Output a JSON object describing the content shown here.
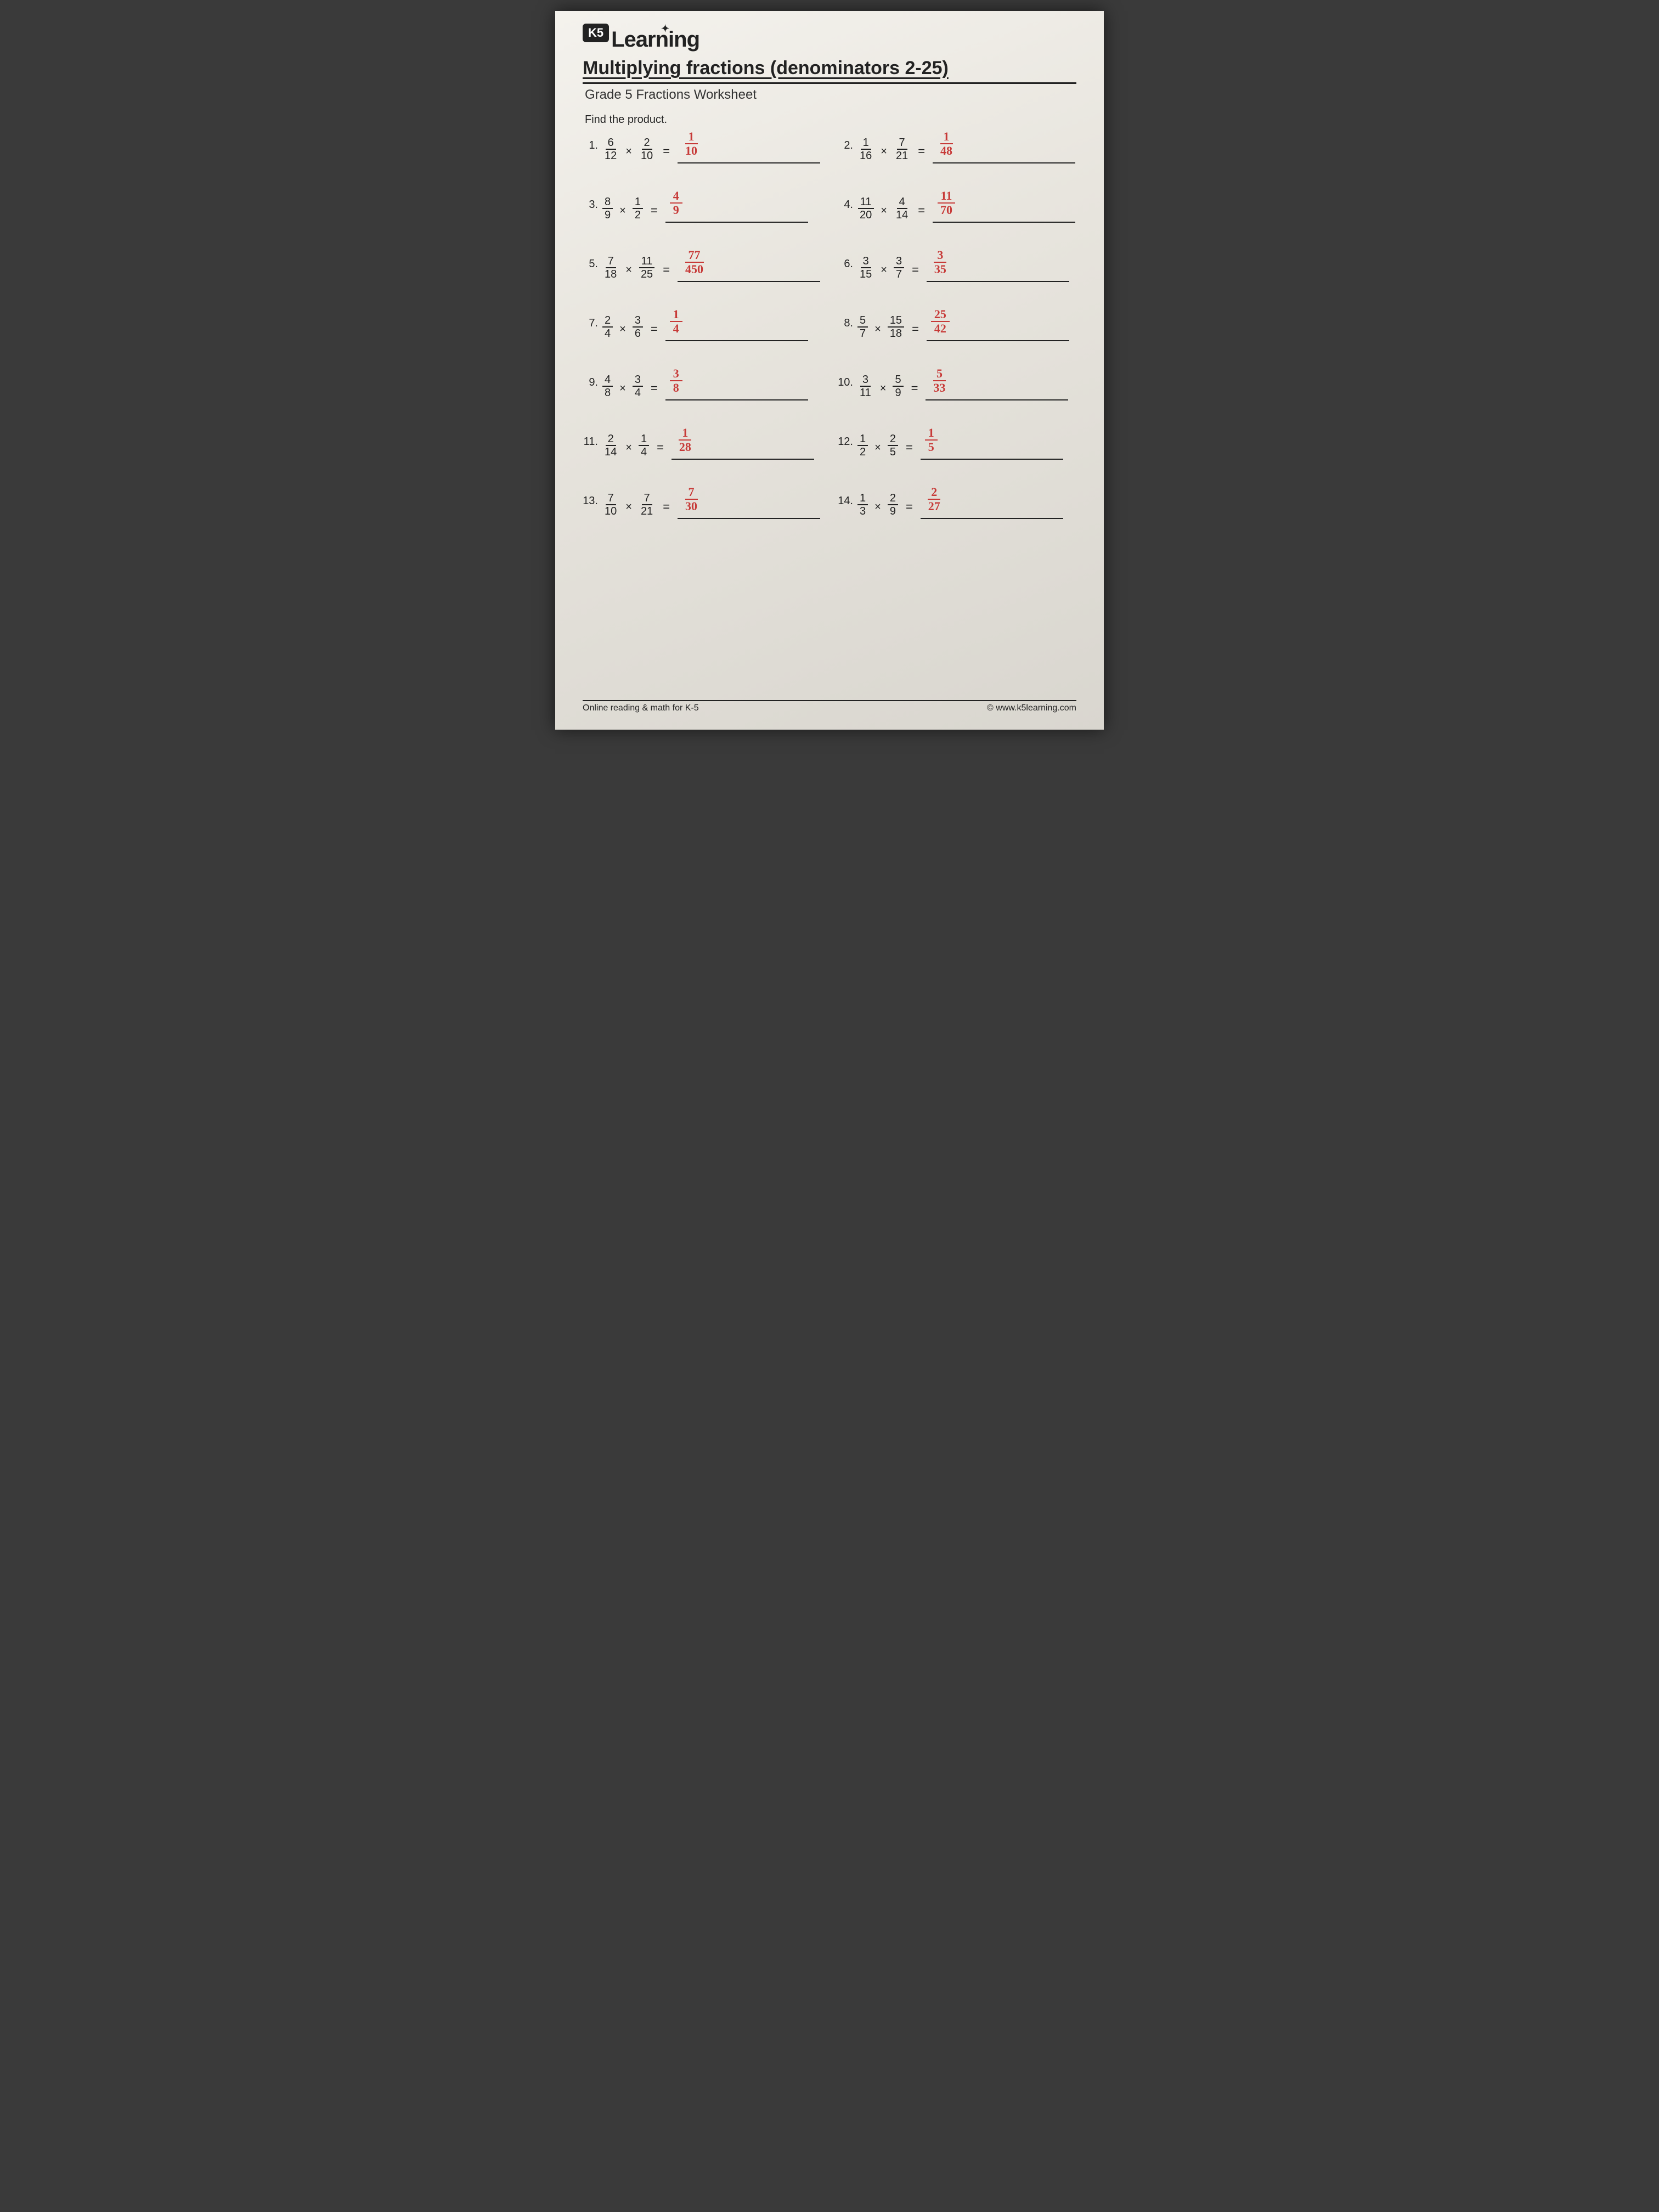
{
  "logo": {
    "badge": "K5",
    "word": "Learning"
  },
  "title": "Multiplying fractions (denominators 2-25)",
  "subtitle": "Grade 5 Fractions Worksheet",
  "instruction": "Find the product.",
  "problems": [
    {
      "n": "1.",
      "a_num": "6",
      "a_den": "12",
      "b_num": "2",
      "b_den": "10",
      "ans_num": "1",
      "ans_den": "10"
    },
    {
      "n": "2.",
      "a_num": "1",
      "a_den": "16",
      "b_num": "7",
      "b_den": "21",
      "ans_num": "1",
      "ans_den": "48"
    },
    {
      "n": "3.",
      "a_num": "8",
      "a_den": "9",
      "b_num": "1",
      "b_den": "2",
      "ans_num": "4",
      "ans_den": "9"
    },
    {
      "n": "4.",
      "a_num": "11",
      "a_den": "20",
      "b_num": "4",
      "b_den": "14",
      "ans_num": "11",
      "ans_den": "70"
    },
    {
      "n": "5.",
      "a_num": "7",
      "a_den": "18",
      "b_num": "11",
      "b_den": "25",
      "ans_num": "77",
      "ans_den": "450"
    },
    {
      "n": "6.",
      "a_num": "3",
      "a_den": "15",
      "b_num": "3",
      "b_den": "7",
      "ans_num": "3",
      "ans_den": "35"
    },
    {
      "n": "7.",
      "a_num": "2",
      "a_den": "4",
      "b_num": "3",
      "b_den": "6",
      "ans_num": "1",
      "ans_den": "4"
    },
    {
      "n": "8.",
      "a_num": "5",
      "a_den": "7",
      "b_num": "15",
      "b_den": "18",
      "ans_num": "25",
      "ans_den": "42"
    },
    {
      "n": "9.",
      "a_num": "4",
      "a_den": "8",
      "b_num": "3",
      "b_den": "4",
      "ans_num": "3",
      "ans_den": "8"
    },
    {
      "n": "10.",
      "a_num": "3",
      "a_den": "11",
      "b_num": "5",
      "b_den": "9",
      "ans_num": "5",
      "ans_den": "33"
    },
    {
      "n": "11.",
      "a_num": "2",
      "a_den": "14",
      "b_num": "1",
      "b_den": "4",
      "ans_num": "1",
      "ans_den": "28"
    },
    {
      "n": "12.",
      "a_num": "1",
      "a_den": "2",
      "b_num": "2",
      "b_den": "5",
      "ans_num": "1",
      "ans_den": "5"
    },
    {
      "n": "13.",
      "a_num": "7",
      "a_den": "10",
      "b_num": "7",
      "b_den": "21",
      "ans_num": "7",
      "ans_den": "30"
    },
    {
      "n": "14.",
      "a_num": "1",
      "a_den": "3",
      "b_num": "2",
      "b_den": "9",
      "ans_num": "2",
      "ans_den": "27"
    }
  ],
  "footer_left": "Online reading & math for K-5",
  "footer_right": "© www.k5learning.com",
  "colors": {
    "ink": "#222222",
    "hand": "#c73a38",
    "paper_top": "#f4f2ed",
    "paper_bot": "#d9d6cf"
  },
  "typography": {
    "title_pt": 34,
    "subtitle_pt": 24,
    "body_pt": 20,
    "hand_pt": 22,
    "title_weight": 700
  }
}
